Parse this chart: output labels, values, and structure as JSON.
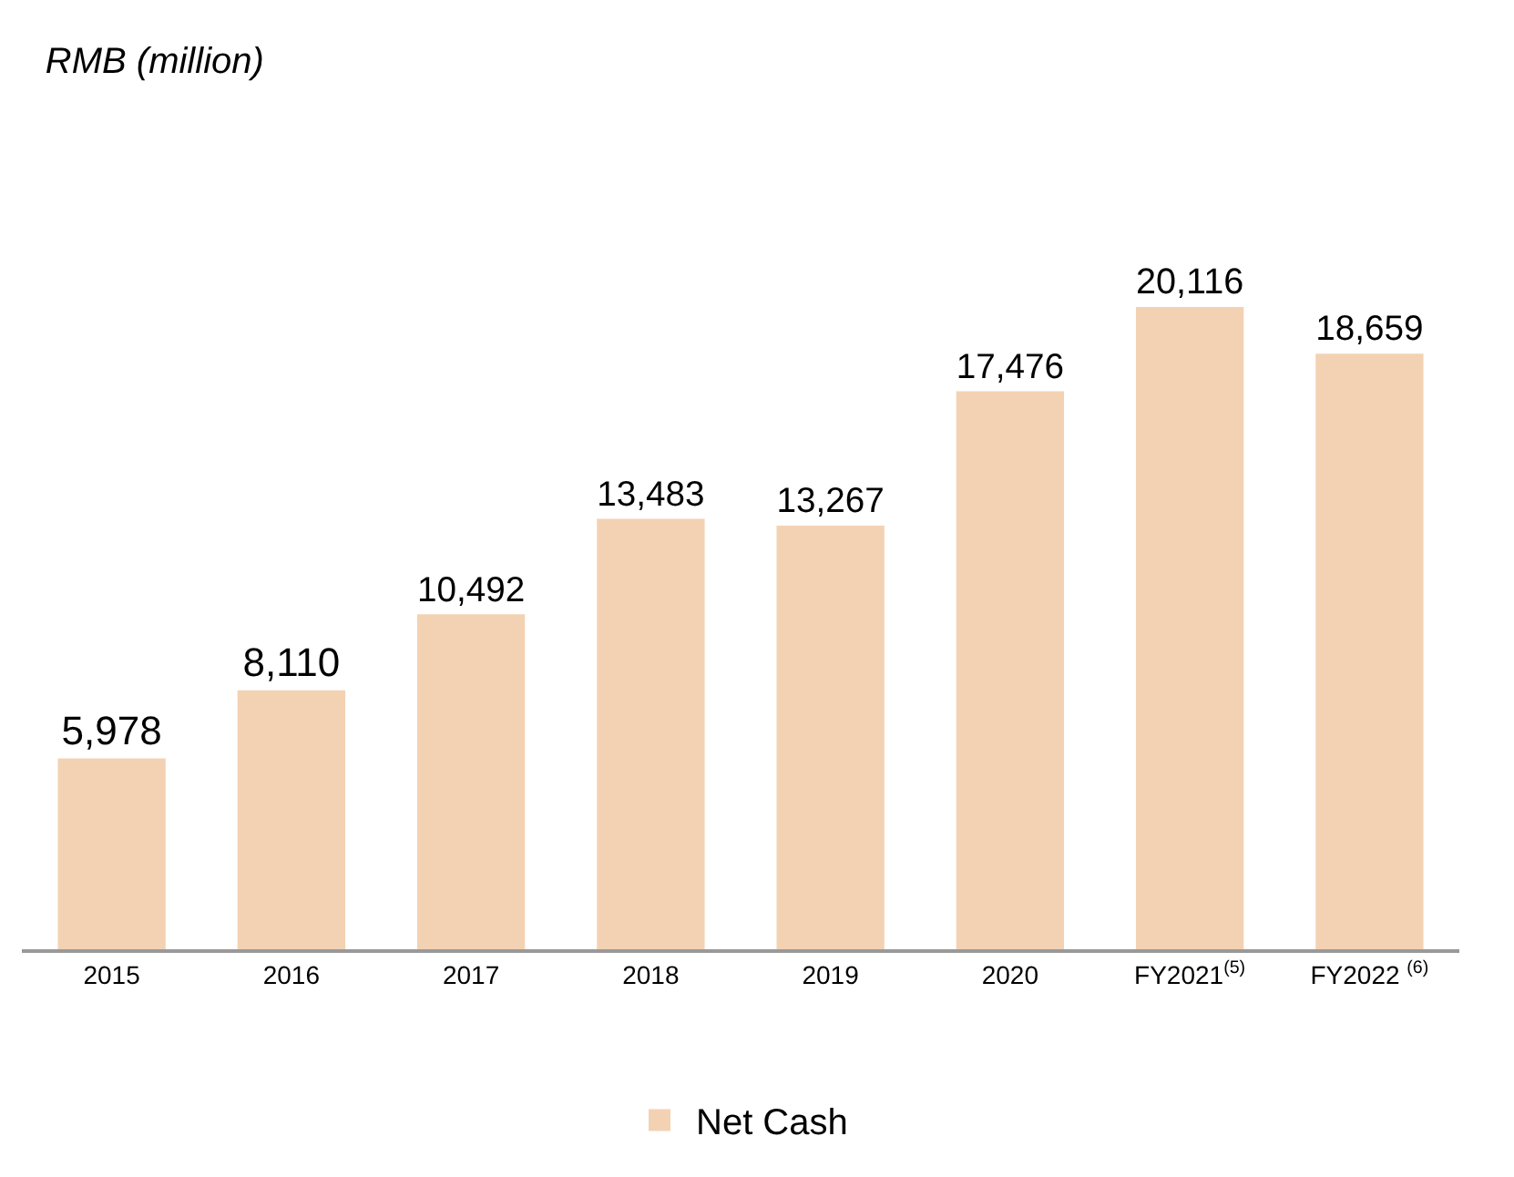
{
  "chart_data": {
    "type": "bar",
    "title": "RMB (million)",
    "categories": [
      "2015",
      "2016",
      "2017",
      "2018",
      "2019",
      "2020",
      "FY2021$^{(5)}$",
      "FY2022 $^{(6)}$"
    ],
    "series": [
      {
        "name": "Net Cash",
        "color": "#f3d2b3",
        "values": [
          5978,
          8110,
          10492,
          13483,
          13267,
          17476,
          20116,
          18659
        ],
        "value_labels": [
          "5,978",
          "8,110",
          "10,492",
          "13,483",
          "13,267",
          "17,476",
          "20,116",
          "18,659"
        ]
      }
    ],
    "legend": "bottom"
  }
}
